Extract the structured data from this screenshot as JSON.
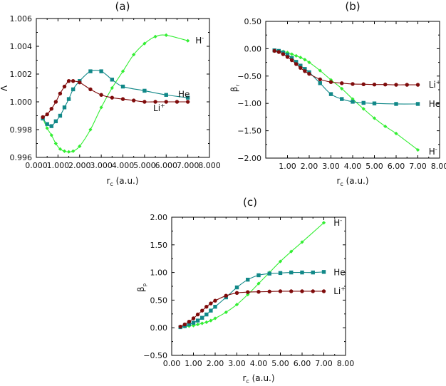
{
  "colors": {
    "H": "#33ee33",
    "He": "#118888",
    "Li": "#7f0b0b",
    "axis": "#000000"
  },
  "chart_data": [
    {
      "panel": "(a)",
      "type": "line",
      "xlabel_main": "r",
      "xlabel_sub": "c",
      "xlabel_unit": " (a.u.)",
      "ylabel_main": "Λ",
      "ylabel_sub": "",
      "xlim": [
        0,
        8
      ],
      "ylim": [
        0.996,
        1.006
      ],
      "xticks": [
        0,
        1,
        2,
        3,
        4,
        5,
        6,
        7,
        8
      ],
      "xtick_labels": [
        "0.000",
        "1.000",
        "2.000",
        "3.000",
        "4.000",
        "5.000",
        "6.000",
        "7.000",
        "8.000"
      ],
      "yticks": [
        0.996,
        0.998,
        1.0,
        1.002,
        1.004,
        1.006
      ],
      "ytick_labels": [
        "0.996",
        "0.998",
        "1.000",
        "1.002",
        "1.004",
        "1.006"
      ],
      "grid": false,
      "series": [
        {
          "name": "H",
          "sup": "-",
          "color_key": "H",
          "marker": "diamond",
          "x": [
            0.3,
            0.5,
            0.7,
            0.9,
            1.1,
            1.3,
            1.5,
            1.7,
            2.0,
            2.5,
            3.0,
            3.5,
            4.0,
            4.5,
            5.0,
            5.5,
            6.0,
            7.0
          ],
          "y": [
            0.9988,
            0.9981,
            0.9976,
            0.997,
            0.9966,
            0.99645,
            0.9964,
            0.99645,
            0.9968,
            0.998,
            0.9996,
            1.001,
            1.0022,
            1.0034,
            1.0042,
            1.0047,
            1.0048,
            1.0044
          ]
        },
        {
          "name": "He",
          "sup": "",
          "color_key": "He",
          "marker": "square",
          "x": [
            0.3,
            0.5,
            0.7,
            0.9,
            1.1,
            1.3,
            1.5,
            1.7,
            2.0,
            2.5,
            3.0,
            3.5,
            4.0,
            5.0,
            6.0,
            7.0
          ],
          "y": [
            0.9988,
            0.9984,
            0.99825,
            0.9986,
            0.999,
            0.9996,
            1.0002,
            1.0009,
            1.0015,
            1.0022,
            1.0022,
            1.0016,
            1.0011,
            1.0008,
            1.0005,
            1.0003
          ]
        },
        {
          "name": "Li",
          "sup": "+",
          "color_key": "Li",
          "marker": "circle",
          "x": [
            0.3,
            0.5,
            0.7,
            0.9,
            1.1,
            1.3,
            1.5,
            1.7,
            2.0,
            2.5,
            3.0,
            3.5,
            4.0,
            4.5,
            5.0,
            5.5,
            6.0,
            6.5,
            7.0
          ],
          "y": [
            0.9989,
            0.9991,
            0.9995,
            1.0,
            1.0006,
            1.0011,
            1.0015,
            1.0015,
            1.0014,
            1.0009,
            1.0005,
            1.0003,
            1.0002,
            1.0001,
            1.0,
            1.0,
            1.0,
            1.0,
            1.0
          ]
        }
      ],
      "labels": [
        {
          "series": "H",
          "x": 7.35,
          "y": 1.0044
        },
        {
          "series": "He",
          "x": 6.55,
          "y": 1.00055
        },
        {
          "series": "Li",
          "x": 5.4,
          "y": 0.99955
        }
      ]
    },
    {
      "panel": "(b)",
      "type": "line",
      "xlabel_main": "r",
      "xlabel_sub": "c",
      "xlabel_unit": " (a.u.)",
      "ylabel_main": "β",
      "ylabel_sub": "r",
      "xlim": [
        0,
        8
      ],
      "ylim": [
        -2.0,
        0.5
      ],
      "xticks": [
        1,
        2,
        3,
        4,
        5,
        6,
        7,
        8
      ],
      "xtick_labels": [
        "1.00",
        "2.00",
        "3.00",
        "4.00",
        "5.00",
        "6.00",
        "7.00",
        "8.00"
      ],
      "yticks": [
        -2.0,
        -1.5,
        -1.0,
        -0.5,
        0.0,
        0.5
      ],
      "ytick_labels": [
        "−2.00",
        "−1.50",
        "−1.00",
        "−0.50",
        "0.00",
        "0.50"
      ],
      "grid": false,
      "series": [
        {
          "name": "H",
          "sup": "-",
          "color_key": "H",
          "marker": "diamond",
          "x": [
            0.4,
            0.6,
            0.8,
            1.0,
            1.2,
            1.4,
            1.6,
            1.8,
            2.0,
            2.5,
            3.0,
            3.5,
            4.0,
            4.5,
            5.0,
            5.5,
            6.0,
            7.0
          ],
          "y": [
            -0.03,
            -0.035,
            -0.05,
            -0.07,
            -0.1,
            -0.13,
            -0.16,
            -0.2,
            -0.25,
            -0.4,
            -0.57,
            -0.73,
            -0.92,
            -1.1,
            -1.27,
            -1.42,
            -1.55,
            -1.85
          ]
        },
        {
          "name": "He",
          "sup": "",
          "color_key": "He",
          "marker": "square",
          "x": [
            0.4,
            0.6,
            0.8,
            1.0,
            1.2,
            1.4,
            1.6,
            1.8,
            2.0,
            2.5,
            3.0,
            3.5,
            4.0,
            4.5,
            5.0,
            6.0,
            7.0
          ],
          "y": [
            -0.03,
            -0.04,
            -0.07,
            -0.11,
            -0.17,
            -0.24,
            -0.31,
            -0.37,
            -0.43,
            -0.63,
            -0.83,
            -0.92,
            -0.97,
            -0.99,
            -1.0,
            -1.01,
            -1.01
          ]
        },
        {
          "name": "Li",
          "sup": "+",
          "color_key": "Li",
          "marker": "circle",
          "x": [
            0.4,
            0.6,
            0.8,
            1.0,
            1.2,
            1.4,
            1.6,
            1.8,
            2.0,
            2.5,
            3.0,
            3.5,
            4.0,
            4.5,
            5.0,
            5.5,
            6.0,
            6.5,
            7.0
          ],
          "y": [
            -0.04,
            -0.06,
            -0.1,
            -0.15,
            -0.21,
            -0.28,
            -0.35,
            -0.41,
            -0.46,
            -0.56,
            -0.61,
            -0.63,
            -0.645,
            -0.65,
            -0.655,
            -0.655,
            -0.66,
            -0.66,
            -0.66
          ]
        }
      ],
      "labels": [
        {
          "series": "Li",
          "x": 7.5,
          "y": -0.66
        },
        {
          "series": "He",
          "x": 7.5,
          "y": -1.01
        },
        {
          "series": "H",
          "x": 7.5,
          "y": -1.88
        }
      ]
    },
    {
      "panel": "(c)",
      "type": "line",
      "xlabel_main": "r",
      "xlabel_sub": "c",
      "xlabel_unit": " (a.u.)",
      "ylabel_main": "β",
      "ylabel_sub": "p",
      "xlim": [
        0,
        8
      ],
      "ylim": [
        -0.5,
        2.0
      ],
      "xticks": [
        0,
        1,
        2,
        3,
        4,
        5,
        6,
        7,
        8
      ],
      "xtick_labels": [
        "0.00",
        "1.00",
        "2.00",
        "3.00",
        "4.00",
        "5.00",
        "6.00",
        "7.00",
        "8.00"
      ],
      "yticks": [
        -0.5,
        0.0,
        0.5,
        1.0,
        1.5,
        2.0
      ],
      "ytick_labels": [
        "−0.50",
        "0.00",
        "0.50",
        "1.00",
        "1.50",
        "2.00"
      ],
      "grid": false,
      "series": [
        {
          "name": "H",
          "sup": "-",
          "color_key": "H",
          "marker": "diamond",
          "x": [
            0.4,
            0.6,
            0.8,
            1.0,
            1.2,
            1.4,
            1.6,
            1.8,
            2.0,
            2.5,
            3.0,
            3.5,
            4.0,
            4.5,
            5.0,
            5.5,
            6.0,
            7.0
          ],
          "y": [
            0.01,
            0.02,
            0.03,
            0.04,
            0.06,
            0.08,
            0.1,
            0.13,
            0.17,
            0.28,
            0.42,
            0.6,
            0.8,
            1.0,
            1.2,
            1.38,
            1.55,
            1.9
          ]
        },
        {
          "name": "He",
          "sup": "",
          "color_key": "He",
          "marker": "square",
          "x": [
            0.4,
            0.6,
            0.8,
            1.0,
            1.2,
            1.4,
            1.6,
            1.8,
            2.0,
            2.5,
            3.0,
            3.5,
            4.0,
            4.5,
            5.0,
            5.5,
            6.0,
            6.5,
            7.0
          ],
          "y": [
            0.01,
            0.03,
            0.06,
            0.09,
            0.13,
            0.18,
            0.24,
            0.31,
            0.38,
            0.55,
            0.73,
            0.87,
            0.95,
            0.98,
            0.99,
            1.0,
            1.0,
            1.0,
            1.01
          ]
        },
        {
          "name": "Li",
          "sup": "+",
          "color_key": "Li",
          "marker": "circle",
          "x": [
            0.4,
            0.6,
            0.8,
            1.0,
            1.2,
            1.4,
            1.6,
            1.8,
            2.0,
            2.5,
            3.0,
            3.5,
            4.0,
            4.5,
            5.0,
            5.5,
            6.0,
            6.5,
            7.0
          ],
          "y": [
            0.02,
            0.06,
            0.11,
            0.17,
            0.24,
            0.31,
            0.38,
            0.44,
            0.49,
            0.58,
            0.63,
            0.645,
            0.65,
            0.655,
            0.66,
            0.66,
            0.66,
            0.66,
            0.66
          ]
        }
      ],
      "labels": [
        {
          "series": "H",
          "x": 7.45,
          "y": 1.9
        },
        {
          "series": "He",
          "x": 7.45,
          "y": 1.0
        },
        {
          "series": "Li",
          "x": 7.45,
          "y": 0.66
        }
      ]
    }
  ]
}
